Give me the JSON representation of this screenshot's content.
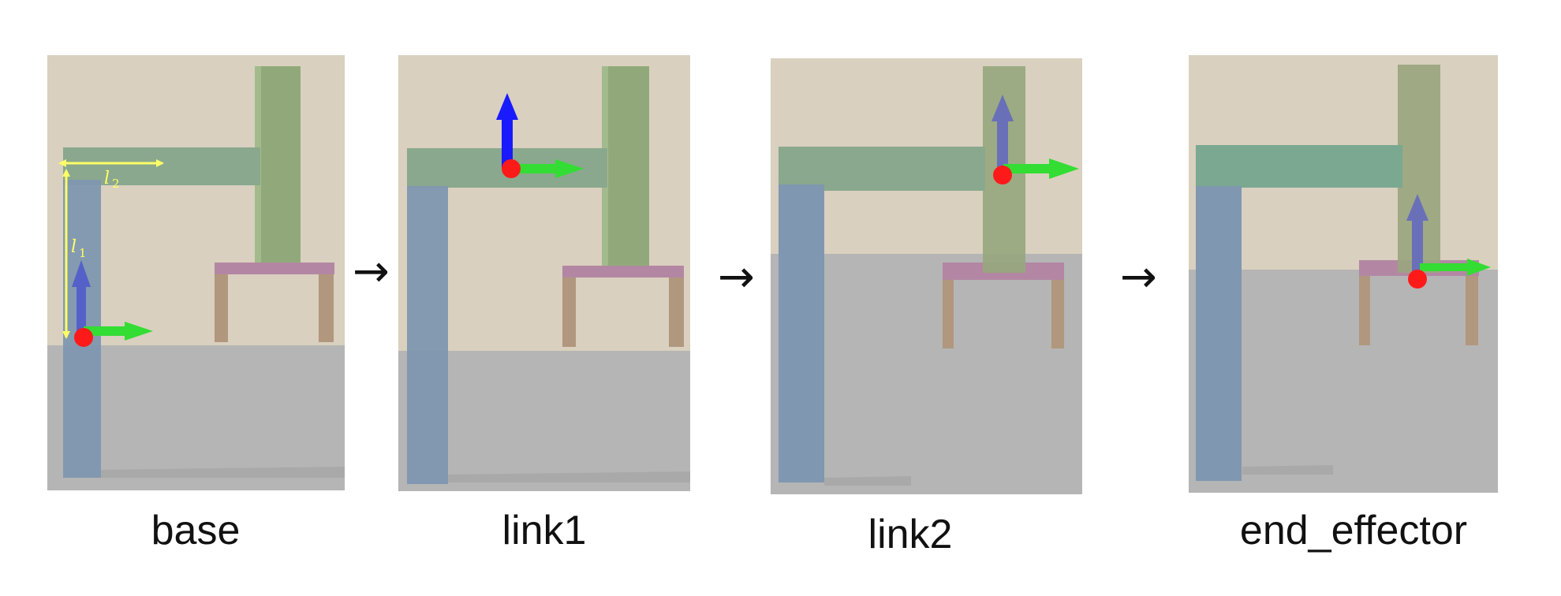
{
  "panels": [
    {
      "label": "base"
    },
    {
      "label": "link1"
    },
    {
      "label": "link2"
    },
    {
      "label": "end_effector"
    }
  ],
  "annotations": {
    "l1": {
      "symbol": "l",
      "subscript": "1"
    },
    "l2": {
      "symbol": "l",
      "subscript": "2"
    }
  },
  "transition_glyph": "→",
  "colors": {
    "wall": "#d9d0bf",
    "floor": "#b5b5b5",
    "link_vertical": "#7f97b0",
    "link_horizontal": "#8aa88d",
    "end_column": "#91a97a",
    "table_top": "#b387a3",
    "table_leg": "#b1977e",
    "dimension": "#ffff66",
    "frame_origin": "#ff1a1a",
    "axis_z": "#1a1aff",
    "axis_x": "#33dd33"
  }
}
